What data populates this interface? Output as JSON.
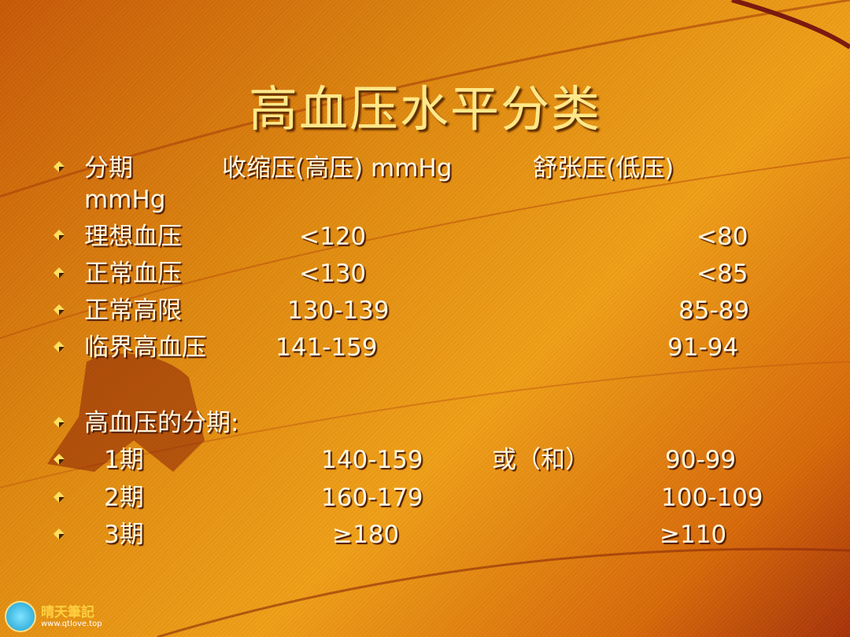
{
  "title": "高血压水平分类",
  "header_row": {
    "label": "分期",
    "systolic": "收缩压(高压) mmHg",
    "diastolic": "舒张压(低压)",
    "diastolic_unit": "mmHg"
  },
  "rows": [
    {
      "label": "理想血压",
      "systolic": "<120",
      "diastolic": "<80"
    },
    {
      "label": "正常血压",
      "systolic": "<130",
      "diastolic": "<85"
    },
    {
      "label": "正常高限",
      "systolic": "130-139",
      "diastolic": "85-89"
    },
    {
      "label": "临界高血压",
      "systolic": "141-159",
      "diastolic": "91-94"
    }
  ],
  "stages_heading": "高血压的分期:",
  "stages": [
    {
      "label": "1期",
      "systolic": "140-159",
      "connector": "或（和）",
      "diastolic": "90-99"
    },
    {
      "label": "2期",
      "systolic": "160-179",
      "diastolic": "100-109"
    },
    {
      "label": "3期",
      "systolic": "≥180",
      "diastolic": "≥110"
    }
  ],
  "watermark": {
    "name": "晴天筆記",
    "url": "www.qtlove.top"
  },
  "colors": {
    "title": "#ffe88a",
    "text": "#fff6e0",
    "background": "#e08a10"
  }
}
